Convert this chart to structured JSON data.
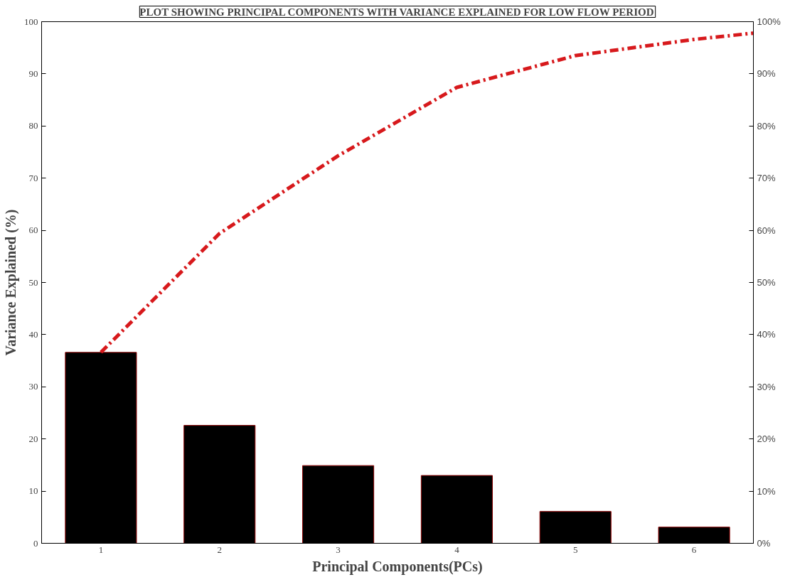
{
  "chart_data": {
    "type": "bar",
    "title": "PLOT SHOWING PRINCIPAL COMPONENTS WITH VARIANCE EXPLAINED FOR LOW FLOW PERIOD",
    "xlabel": "Principal Components(PCs)",
    "ylabel": "Variance Explained (%)",
    "x": [
      1,
      2,
      3,
      4,
      5,
      6
    ],
    "xlim": [
      0.5,
      6.5
    ],
    "xticks": [
      1,
      2,
      3,
      4,
      5,
      6
    ],
    "ylim": [
      0,
      100
    ],
    "yticks": [
      0,
      10,
      20,
      30,
      40,
      50,
      60,
      70,
      80,
      90,
      100
    ],
    "y2lim": [
      0,
      100
    ],
    "y2ticks": [
      {
        "value": 0,
        "label": "0%"
      },
      {
        "value": 10,
        "label": "10%"
      },
      {
        "value": 20,
        "label": "20%"
      },
      {
        "value": 30,
        "label": "30%"
      },
      {
        "value": 40,
        "label": "40%"
      },
      {
        "value": 50,
        "label": "50%"
      },
      {
        "value": 60,
        "label": "60%"
      },
      {
        "value": 70,
        "label": "70%"
      },
      {
        "value": 80,
        "label": "80%"
      },
      {
        "value": 90,
        "label": "90%"
      },
      {
        "value": 100,
        "label": "100%"
      }
    ],
    "grid": false,
    "series": [
      {
        "color": "#000000",
        "values": [
          36.6,
          22.6,
          14.9,
          13.0,
          6.1,
          3.1
        ]
      },
      {
        "type": "line",
        "color": "#d7191c",
        "line_style": "dashed",
        "x": [
          1,
          2,
          3,
          4,
          5,
          6,
          6.5
        ],
        "values": [
          36.6,
          59.4,
          74.3,
          87.4,
          93.5,
          96.6,
          97.8
        ]
      }
    ]
  }
}
